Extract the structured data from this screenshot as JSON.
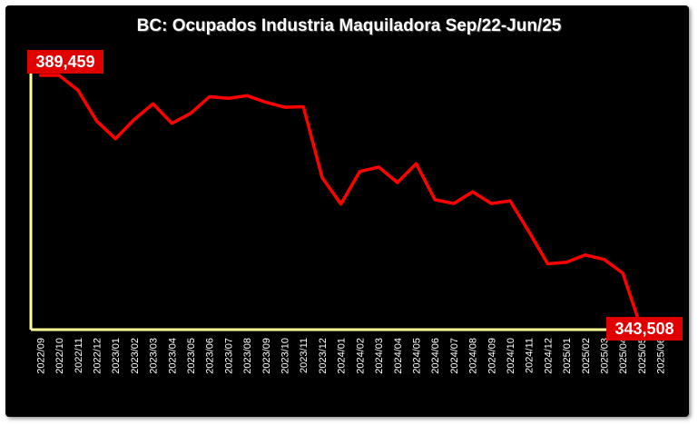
{
  "chart_data": {
    "type": "line",
    "title": "BC: Ocupados Industria Maquiladora Sep/22-Jun/25",
    "xlabel": "",
    "ylabel": "",
    "ylim": [
      343508,
      389459
    ],
    "grid": false,
    "legend": "none",
    "categories": [
      "2022/09",
      "2022/10",
      "2022/11",
      "2022/12",
      "2023/01",
      "2023/02",
      "2023/03",
      "2023/04",
      "2023/05",
      "2023/06",
      "2023/07",
      "2023/08",
      "2023/09",
      "2023/10",
      "2023/11",
      "2023/12",
      "2024/01",
      "2024/02",
      "2024/03",
      "2024/04",
      "2024/05",
      "2024/06",
      "2024/07",
      "2024/08",
      "2024/09",
      "2024/10",
      "2024/11",
      "2024/12",
      "2025/01",
      "2025/02",
      "2025/03",
      "2025/04",
      "2025/05",
      "2025/06"
    ],
    "series": [
      {
        "color": "#ff0000",
        "values": [
          389459,
          389459,
          386800,
          381200,
          378000,
          381500,
          384300,
          380800,
          382600,
          385600,
          385300,
          385800,
          384600,
          383700,
          383800,
          371000,
          366200,
          372100,
          372900,
          370100,
          373500,
          367000,
          366300,
          368400,
          366300,
          366800,
          361200,
          355400,
          355700,
          357000,
          356200,
          353700,
          343508,
          343508
        ]
      }
    ],
    "data_labels": [
      {
        "text": "389,459",
        "index": 0
      },
      {
        "text": "343,508",
        "index": 33
      }
    ],
    "axis_color": "#ffff99",
    "label_bg": "#e00000"
  }
}
